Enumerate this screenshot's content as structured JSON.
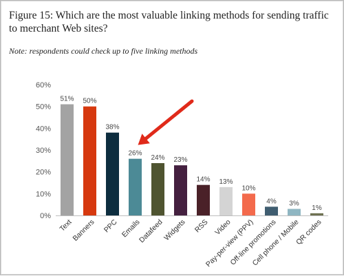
{
  "figure": {
    "title": "Figure 15: Which are the most valuable linking methods for sending traffic to merchant Web sites?",
    "note": "Note: respondents could check up to five linking methods"
  },
  "chart_data": {
    "type": "bar",
    "title": "",
    "xlabel": "",
    "ylabel": "",
    "ylim": [
      0,
      60
    ],
    "yticks": [
      0,
      10,
      20,
      30,
      40,
      50,
      60
    ],
    "ytick_format": "%",
    "grid": false,
    "legend": "none",
    "categories": [
      "Text",
      "Banners",
      "PPC",
      "Emails",
      "Datafeed",
      "Widgets",
      "RSS",
      "Video",
      "Pay-per-view (PPV)",
      "Off-line promotions",
      "Cell phone / Mobile",
      "QR codes"
    ],
    "values": [
      51,
      50,
      38,
      26,
      24,
      23,
      14,
      13,
      10,
      4,
      3,
      1
    ],
    "data_labels": [
      "51%",
      "50%",
      "38%",
      "26%",
      "24%",
      "23%",
      "14%",
      "13%",
      "10%",
      "4%",
      "3%",
      "1%"
    ],
    "colors": [
      "#a3a3a3",
      "#d6390f",
      "#0d2d3f",
      "#4c8a96",
      "#4f5430",
      "#44203f",
      "#4a2128",
      "#d4d4d4",
      "#f36a4c",
      "#3f5d70",
      "#8fb6c2",
      "#6e7151"
    ],
    "annotation": {
      "type": "arrow",
      "color": "#e02a1a",
      "target_category": "Emails"
    }
  }
}
